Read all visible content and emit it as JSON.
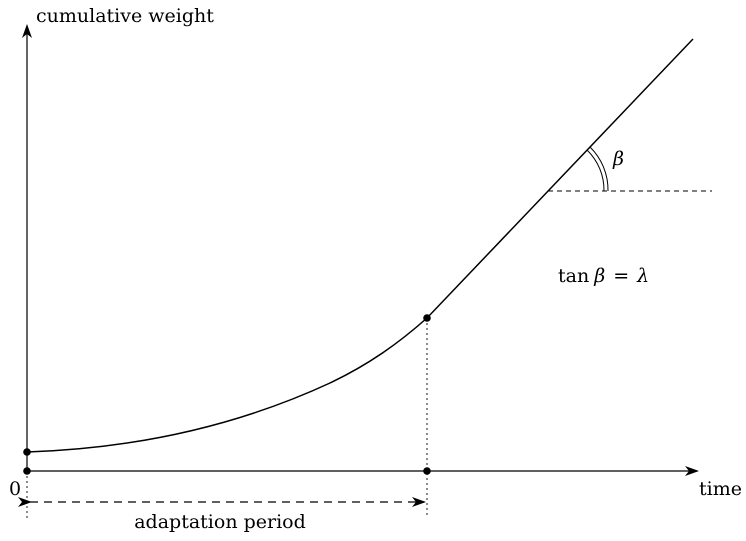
{
  "axes": {
    "y_label": "cumulative weight",
    "x_label": "time",
    "origin_label": "0"
  },
  "annotations": {
    "period_label": "adaptation period",
    "angle_label": "β",
    "formula": {
      "func": "tan",
      "arg": "β",
      "equals": "=",
      "rhs": "λ"
    }
  }
}
